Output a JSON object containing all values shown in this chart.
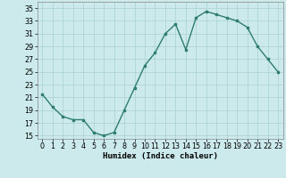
{
  "x": [
    0,
    1,
    2,
    3,
    4,
    5,
    6,
    7,
    8,
    9,
    10,
    11,
    12,
    13,
    14,
    15,
    16,
    17,
    18,
    19,
    20,
    21,
    22,
    23
  ],
  "y": [
    21.5,
    19.5,
    18.0,
    17.5,
    17.5,
    15.5,
    15.0,
    15.5,
    19.0,
    22.5,
    26.0,
    28.0,
    31.0,
    32.5,
    28.5,
    33.5,
    34.5,
    34.0,
    33.5,
    33.0,
    32.0,
    29.0,
    27.0,
    25.0
  ],
  "line_color": "#2e7d6e",
  "marker": "s",
  "marker_size": 1.8,
  "bg_color": "#cceaec",
  "grid_color": "#aacfcf",
  "xlabel": "Humidex (Indice chaleur)",
  "xlim": [
    -0.5,
    23.5
  ],
  "ylim": [
    14.5,
    36.0
  ],
  "yticks": [
    15,
    17,
    19,
    21,
    23,
    25,
    27,
    29,
    31,
    33,
    35
  ],
  "xticks": [
    0,
    1,
    2,
    3,
    4,
    5,
    6,
    7,
    8,
    9,
    10,
    11,
    12,
    13,
    14,
    15,
    16,
    17,
    18,
    19,
    20,
    21,
    22,
    23
  ],
  "xlabel_fontsize": 6.5,
  "tick_fontsize": 5.8,
  "linewidth": 1.0
}
